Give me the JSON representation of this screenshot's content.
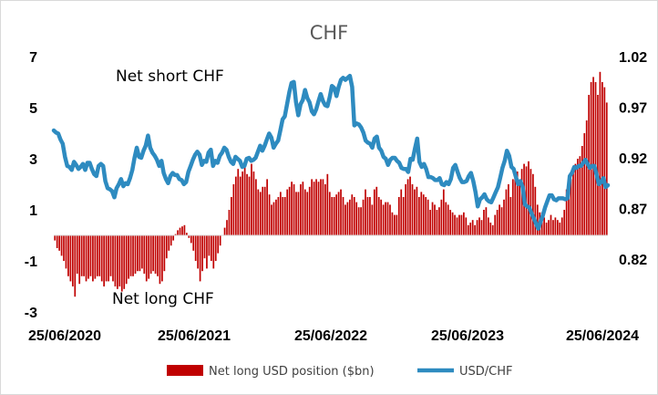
{
  "chart_data": {
    "type": "bar+line",
    "title": "CHF",
    "x_tick_labels": [
      "25/06/2020",
      "25/06/2021",
      "25/06/2022",
      "25/06/2023",
      "25/06/2024"
    ],
    "y_left": {
      "ticks": [
        7,
        5,
        3,
        1,
        -1,
        -3
      ],
      "range": [
        -3,
        7
      ]
    },
    "y_right": {
      "ticks": [
        1.02,
        0.97,
        0.92,
        0.87,
        0.82
      ],
      "range": [
        0.82,
        1.02
      ]
    },
    "annotations": [
      "Net short CHF",
      "Net long CHF"
    ],
    "series": [
      {
        "name": "Net long USD position ($bn)",
        "type": "bar",
        "axis": "left",
        "color": "#c00000",
        "values": [
          -0.2,
          -0.5,
          -0.6,
          -0.8,
          -1.0,
          -1.3,
          -1.6,
          -1.8,
          -2.0,
          -2.4,
          -1.5,
          -1.9,
          -1.6,
          -1.6,
          -1.8,
          -1.7,
          -1.6,
          -1.8,
          -1.7,
          -1.6,
          -1.6,
          -1.8,
          -2.0,
          -1.8,
          -1.8,
          -1.6,
          -1.8,
          -2.0,
          -2.1,
          -2.0,
          -2.2,
          -2.1,
          -1.9,
          -1.7,
          -1.6,
          -1.6,
          -1.5,
          -1.4,
          -1.4,
          -1.3,
          -1.5,
          -1.8,
          -1.7,
          -1.5,
          -1.4,
          -1.5,
          -1.6,
          -1.9,
          -1.8,
          -1.4,
          -0.9,
          -0.6,
          -0.4,
          -0.2,
          0.05,
          0.2,
          0.3,
          0.35,
          0.4,
          0.1,
          -0.1,
          -0.3,
          -0.6,
          -1.0,
          -1.3,
          -1.8,
          -1.4,
          -0.9,
          -1.3,
          -0.8,
          -1.0,
          -1.3,
          -1.0,
          -0.7,
          -0.4,
          0.0,
          0.3,
          0.6,
          1.0,
          1.5,
          2.0,
          2.3,
          2.6,
          2.3,
          2.5,
          2.7,
          2.4,
          2.3,
          2.8,
          2.5,
          2.2,
          1.8,
          1.7,
          1.9,
          1.9,
          2.2,
          1.6,
          1.2,
          1.3,
          1.4,
          1.5,
          1.7,
          1.5,
          1.5,
          1.8,
          1.9,
          2.1,
          2.0,
          1.7,
          1.7,
          2.0,
          2.1,
          1.8,
          1.7,
          1.9,
          2.2,
          2.1,
          2.2,
          2.1,
          2.2,
          2.2,
          2.0,
          2.4,
          1.7,
          1.5,
          1.5,
          1.6,
          1.7,
          1.8,
          1.5,
          1.2,
          1.3,
          1.4,
          1.6,
          1.5,
          1.3,
          1.1,
          1.1,
          1.4,
          1.8,
          1.5,
          1.5,
          1.2,
          1.8,
          1.9,
          1.5,
          1.4,
          1.2,
          1.3,
          1.3,
          1.2,
          0.9,
          0.8,
          0.8,
          1.5,
          1.8,
          1.5,
          2.0,
          2.2,
          2.3,
          2.0,
          1.8,
          1.9,
          1.5,
          1.7,
          1.6,
          1.5,
          1.4,
          1.0,
          1.3,
          1.2,
          1.0,
          1.1,
          1.4,
          1.8,
          1.3,
          1.2,
          1.0,
          0.9,
          0.8,
          0.7,
          0.8,
          0.8,
          0.9,
          0.7,
          0.4,
          0.5,
          0.6,
          0.4,
          0.6,
          0.7,
          0.6,
          1.0,
          1.1,
          0.7,
          0.5,
          0.4,
          0.8,
          1.0,
          1.2,
          1.1,
          1.4,
          1.8,
          2.0,
          1.5,
          2.2,
          2.3,
          2.5,
          2.0,
          2.6,
          2.8,
          2.7,
          2.9,
          2.6,
          2.4,
          1.9,
          1.2,
          0.9,
          0.9,
          0.7,
          0.5,
          0.6,
          0.8,
          0.6,
          0.7,
          0.6,
          0.5,
          0.7,
          1.0,
          1.8,
          1.9,
          2.2,
          2.6,
          2.8,
          3.0,
          3.1,
          3.5,
          4.0,
          4.5,
          5.5,
          6.0,
          6.2,
          6.0,
          5.5,
          6.4,
          6.0,
          5.8,
          5.2
        ]
      },
      {
        "name": "USD/CHF",
        "type": "line",
        "axis": "right",
        "color": "#2e8bc0",
        "values": [
          0.947,
          0.945,
          0.944,
          0.938,
          0.934,
          0.921,
          0.912,
          0.911,
          0.908,
          0.916,
          0.913,
          0.909,
          0.911,
          0.914,
          0.908,
          0.915,
          0.915,
          0.909,
          0.904,
          0.902,
          0.912,
          0.914,
          0.912,
          0.897,
          0.89,
          0.889,
          0.887,
          0.881,
          0.89,
          0.894,
          0.899,
          0.892,
          0.895,
          0.894,
          0.9,
          0.908,
          0.92,
          0.93,
          0.921,
          0.92,
          0.927,
          0.932,
          0.942,
          0.93,
          0.925,
          0.922,
          0.918,
          0.912,
          0.917,
          0.905,
          0.899,
          0.895,
          0.902,
          0.905,
          0.903,
          0.903,
          0.899,
          0.898,
          0.894,
          0.896,
          0.906,
          0.912,
          0.918,
          0.923,
          0.926,
          0.923,
          0.913,
          0.917,
          0.916,
          0.925,
          0.928,
          0.912,
          0.917,
          0.915,
          0.922,
          0.925,
          0.93,
          0.928,
          0.921,
          0.916,
          0.914,
          0.921,
          0.919,
          0.917,
          0.911,
          0.912,
          0.919,
          0.92,
          0.917,
          0.918,
          0.92,
          0.926,
          0.932,
          0.927,
          0.932,
          0.938,
          0.944,
          0.94,
          0.93,
          0.934,
          0.937,
          0.947,
          0.958,
          0.961,
          0.973,
          0.985,
          0.994,
          0.995,
          0.975,
          0.962,
          0.973,
          0.977,
          0.987,
          0.979,
          0.975,
          0.966,
          0.963,
          0.968,
          0.976,
          0.983,
          0.976,
          0.972,
          0.971,
          0.98,
          0.991,
          0.989,
          0.981,
          0.99,
          0.997,
          0.999,
          0.997,
          0.999,
          1.001,
          0.99,
          0.952,
          0.954,
          0.953,
          0.95,
          0.945,
          0.937,
          0.935,
          0.934,
          0.93,
          0.939,
          0.941,
          0.93,
          0.927,
          0.921,
          0.919,
          0.913,
          0.918,
          0.92,
          0.92,
          0.917,
          0.915,
          0.91,
          0.909,
          0.909,
          0.906,
          0.919,
          0.918,
          0.929,
          0.939,
          0.916,
          0.911,
          0.914,
          0.909,
          0.901,
          0.901,
          0.9,
          0.898,
          0.898,
          0.9,
          0.894,
          0.893,
          0.896,
          0.894,
          0.899,
          0.91,
          0.913,
          0.906,
          0.9,
          0.896,
          0.896,
          0.897,
          0.902,
          0.905,
          0.897,
          0.886,
          0.872,
          0.879,
          0.881,
          0.884,
          0.879,
          0.877,
          0.876,
          0.881,
          0.886,
          0.891,
          0.9,
          0.91,
          0.917,
          0.927,
          0.922,
          0.911,
          0.909,
          0.901,
          0.894,
          0.897,
          0.891,
          0.874,
          0.872,
          0.871,
          0.865,
          0.86,
          0.855,
          0.85,
          0.857,
          0.863,
          0.871,
          0.877,
          0.883,
          0.883,
          0.879,
          0.878,
          0.88,
          0.88,
          0.88,
          0.879,
          0.88,
          0.902,
          0.905,
          0.911,
          0.91,
          0.912,
          0.912,
          0.915,
          0.918,
          0.914,
          0.91,
          0.912,
          0.912,
          0.903,
          0.894,
          0.896,
          0.9,
          0.891,
          0.893
        ]
      }
    ]
  }
}
